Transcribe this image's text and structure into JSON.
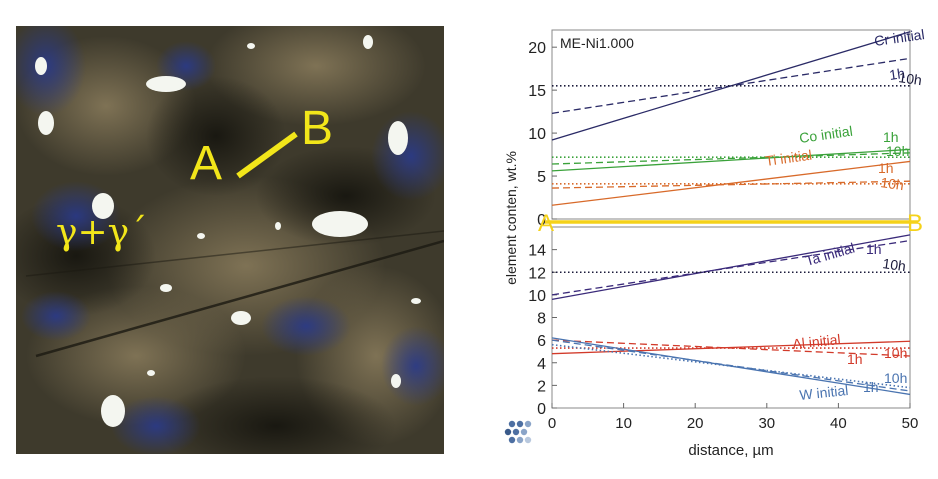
{
  "micrograph": {
    "label_A": "A",
    "label_B": "B",
    "phase_label": "γ+γ´"
  },
  "chart_data": {
    "type": "line",
    "title": "ME-Ni1.000",
    "xlabel": "distance, µm",
    "ylabel": "element conten, wt.%",
    "xlim": [
      0,
      50
    ],
    "xticks": [
      "0",
      "10",
      "20",
      "30",
      "40",
      "50"
    ],
    "panels": [
      {
        "position": "top",
        "ylim": [
          0,
          22
        ],
        "yticks": [
          "0",
          "5",
          "10",
          "15",
          "20"
        ],
        "series": [
          {
            "name": "Cr initial",
            "color": "#2a2a66",
            "dash": "solid",
            "x": [
              0,
              50
            ],
            "values": [
              9.2,
              21.8
            ]
          },
          {
            "name": "1h",
            "element": "Cr",
            "color": "#2a2a66",
            "dash": "dashed",
            "x": [
              0,
              50
            ],
            "values": [
              12.3,
              18.7
            ]
          },
          {
            "name": "10h",
            "element": "Cr",
            "color": "#1a1a3a",
            "dash": "dotted",
            "x": [
              0,
              50
            ],
            "values": [
              15.5,
              15.5
            ]
          },
          {
            "name": "Co initial",
            "color": "#3aa23a",
            "dash": "solid",
            "x": [
              0,
              50
            ],
            "values": [
              5.6,
              8.1
            ]
          },
          {
            "name": "1h",
            "element": "Co",
            "color": "#3aa23a",
            "dash": "dashed",
            "x": [
              0,
              50
            ],
            "values": [
              6.4,
              7.7
            ]
          },
          {
            "name": "10h",
            "element": "Co",
            "color": "#3aa23a",
            "dash": "dotted",
            "x": [
              0,
              50
            ],
            "values": [
              7.2,
              7.2
            ]
          },
          {
            "name": "Ti initial",
            "color": "#d86a2a",
            "dash": "solid",
            "x": [
              0,
              50
            ],
            "values": [
              1.6,
              6.7
            ]
          },
          {
            "name": "1h",
            "element": "Ti",
            "color": "#d86a2a",
            "dash": "dashed",
            "x": [
              0,
              50
            ],
            "values": [
              3.6,
              4.4
            ]
          },
          {
            "name": "10h",
            "element": "Ti",
            "color": "#d86a2a",
            "dash": "dotted",
            "x": [
              0,
              50
            ],
            "values": [
              4.1,
              4.1
            ]
          }
        ]
      },
      {
        "position": "bottom",
        "ylim": [
          0,
          16
        ],
        "yticks": [
          "0",
          "2",
          "4",
          "6",
          "8",
          "10",
          "12",
          "14"
        ],
        "series": [
          {
            "name": "Ta initial",
            "color": "#3a2a7a",
            "dash": "solid",
            "x": [
              0,
              50
            ],
            "values": [
              9.6,
              15.3
            ]
          },
          {
            "name": "1h",
            "element": "Ta",
            "color": "#3a2a7a",
            "dash": "dashed",
            "x": [
              0,
              50
            ],
            "values": [
              10.0,
              14.8
            ]
          },
          {
            "name": "10h",
            "element": "Ta",
            "color": "#1a1a3a",
            "dash": "dotted",
            "x": [
              0,
              50
            ],
            "values": [
              12.0,
              12.0
            ]
          },
          {
            "name": "Al initial",
            "color": "#d23a2a",
            "dash": "solid",
            "x": [
              0,
              50
            ],
            "values": [
              4.8,
              5.9
            ]
          },
          {
            "name": "1h",
            "element": "Al",
            "color": "#d23a2a",
            "dash": "dashed",
            "x": [
              0,
              50
            ],
            "values": [
              6.0,
              4.6
            ]
          },
          {
            "name": "10h",
            "element": "Al",
            "color": "#d23a2a",
            "dash": "dotted",
            "x": [
              0,
              50
            ],
            "values": [
              5.3,
              5.3
            ]
          },
          {
            "name": "W initial",
            "color": "#4a74b0",
            "dash": "solid",
            "x": [
              0,
              50
            ],
            "values": [
              6.2,
              1.2
            ]
          },
          {
            "name": "1h",
            "element": "W",
            "color": "#4a74b0",
            "dash": "dashed",
            "x": [
              0,
              50
            ],
            "values": [
              6.0,
              1.5
            ]
          },
          {
            "name": "10h",
            "element": "W",
            "color": "#4a74b0",
            "dash": "dotted",
            "x": [
              0,
              50
            ],
            "values": [
              5.6,
              1.8
            ]
          }
        ]
      }
    ],
    "divider": {
      "left_label": "A",
      "right_label": "B",
      "color": "#f5d21a"
    }
  }
}
